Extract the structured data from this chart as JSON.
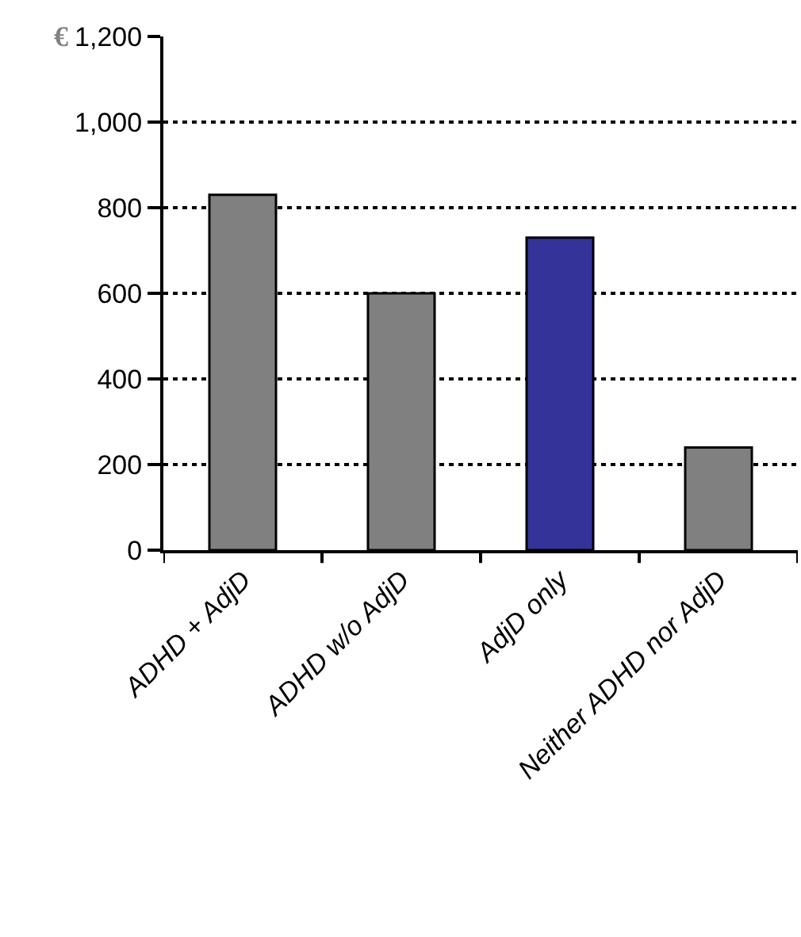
{
  "chart_data": {
    "type": "bar",
    "ylabel": "€",
    "categories": [
      "ADHD + AdjD",
      "ADHD w/o AdjD",
      "AdjD only",
      "Neither ADHD nor AdjD"
    ],
    "values": [
      830,
      600,
      730,
      240
    ],
    "colors": [
      "#808080",
      "#808080",
      "#333399",
      "#808080"
    ],
    "ylim": [
      0,
      1200
    ],
    "yticks": [
      0,
      {
        "value": 200,
        "label": "200"
      },
      {
        "value": 400,
        "label": "400"
      },
      {
        "value": 600,
        "label": "600"
      },
      {
        "value": 800,
        "label": "800"
      },
      {
        "value": 1000,
        "label": "1,000"
      },
      {
        "value": 1200,
        "label": "1,200"
      }
    ],
    "grid": "y",
    "line_style": "dotted",
    "legend": false
  }
}
